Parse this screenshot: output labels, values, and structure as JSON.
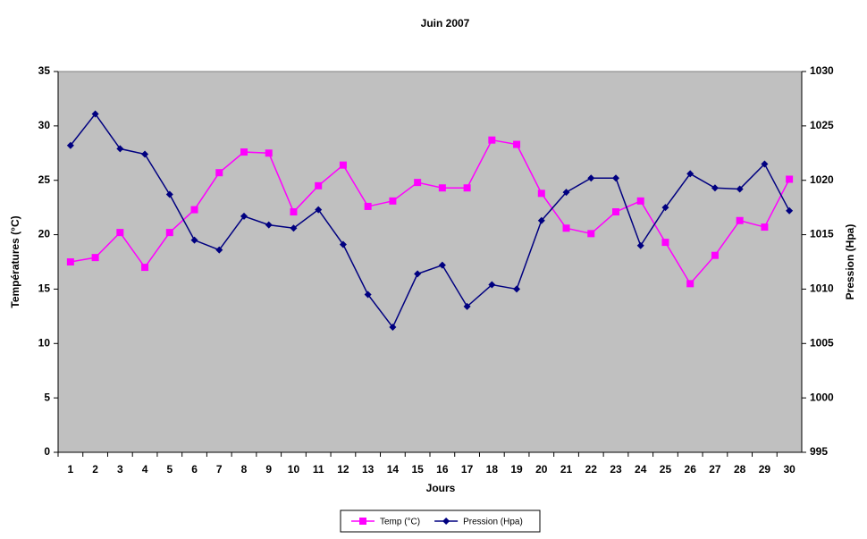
{
  "chart_data": {
    "type": "line",
    "title": "Juin 2007",
    "x_label": "Jours",
    "y_label": "Températures (°C)",
    "y2_label": "Pression (Hpa)",
    "categories": [
      "1",
      "2",
      "3",
      "4",
      "5",
      "6",
      "7",
      "8",
      "9",
      "10",
      "11",
      "12",
      "13",
      "14",
      "15",
      "16",
      "17",
      "18",
      "19",
      "20",
      "21",
      "22",
      "23",
      "24",
      "25",
      "26",
      "27",
      "28",
      "29",
      "30"
    ],
    "series": [
      {
        "name": "Temp (°C)",
        "color": "#ff00ff",
        "marker": "square",
        "values": [
          17.5,
          17.9,
          20.2,
          17,
          20.2,
          22.3,
          25.7,
          27.6,
          27.5,
          22.1,
          24.5,
          26.4,
          22.6,
          23.1,
          24.8,
          24.3,
          24.3,
          28.7,
          28.3,
          23.8,
          20.6,
          20.1,
          22.1,
          23.1,
          19.3,
          15.5,
          18.1,
          21.3,
          20.7,
          25.1
        ]
      },
      {
        "name": "Pression (Hpa)",
        "color": "#000080",
        "marker": "diamond",
        "axis": "y2",
        "values": [
          1023.2,
          1026.1,
          1022.9,
          1022.4,
          1018.7,
          1014.5,
          1013.6,
          1016.7,
          1015.9,
          1015.6,
          1017.3,
          1014.1,
          1009.5,
          1006.5,
          1011.4,
          1012.2,
          1008.4,
          1010.4,
          1010.0,
          1016.3,
          1018.9,
          1020.2,
          1020.2,
          1014.0,
          1017.5,
          1020.6,
          1019.3,
          1019.2,
          1021.5,
          1017.2
        ]
      }
    ],
    "ylim": [
      0,
      35
    ],
    "yticks": [
      0,
      5,
      10,
      15,
      20,
      25,
      30,
      35
    ],
    "y2lim": [
      995,
      1030
    ],
    "y2ticks": [
      995,
      1000,
      1005,
      1010,
      1015,
      1020,
      1025,
      1030
    ],
    "legend": "bottom",
    "plot_background": "#c0c0c0"
  }
}
